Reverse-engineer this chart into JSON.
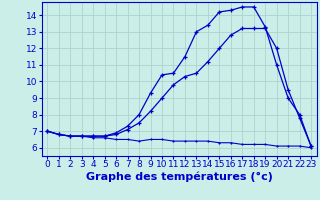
{
  "xlabel": "Graphe des températures (°c)",
  "bg_color": "#cceee8",
  "grid_color": "#aad4cc",
  "line_color": "#0000cc",
  "xlim": [
    -0.5,
    23.5
  ],
  "ylim": [
    5.5,
    14.8
  ],
  "xticks": [
    0,
    1,
    2,
    3,
    4,
    5,
    6,
    7,
    8,
    9,
    10,
    11,
    12,
    13,
    14,
    15,
    16,
    17,
    18,
    19,
    20,
    21,
    22,
    23
  ],
  "yticks": [
    6,
    7,
    8,
    9,
    10,
    11,
    12,
    13,
    14
  ],
  "line1_x": [
    0,
    1,
    2,
    3,
    4,
    5,
    6,
    7,
    8,
    9,
    10,
    11,
    12,
    13,
    14,
    15,
    16,
    17,
    18,
    19,
    20,
    21,
    22,
    23
  ],
  "line1_y": [
    7.0,
    6.8,
    6.7,
    6.7,
    6.6,
    6.6,
    6.5,
    6.5,
    6.4,
    6.5,
    6.5,
    6.4,
    6.4,
    6.4,
    6.4,
    6.3,
    6.3,
    6.2,
    6.2,
    6.2,
    6.1,
    6.1,
    6.1,
    6.0
  ],
  "line2_x": [
    0,
    1,
    2,
    3,
    4,
    5,
    6,
    7,
    8,
    9,
    10,
    11,
    12,
    13,
    14,
    15,
    16,
    17,
    18,
    19,
    20,
    21,
    22,
    23
  ],
  "line2_y": [
    7.0,
    6.8,
    6.7,
    6.7,
    6.7,
    6.7,
    6.8,
    7.1,
    7.5,
    8.2,
    9.0,
    9.8,
    10.3,
    10.5,
    11.2,
    12.0,
    12.8,
    13.2,
    13.2,
    13.2,
    12.0,
    9.5,
    7.8,
    6.1
  ],
  "line3_x": [
    0,
    1,
    2,
    3,
    4,
    5,
    6,
    7,
    8,
    9,
    10,
    11,
    12,
    13,
    14,
    15,
    16,
    17,
    18,
    19,
    20,
    21,
    22,
    23
  ],
  "line3_y": [
    7.0,
    6.8,
    6.7,
    6.7,
    6.7,
    6.7,
    6.9,
    7.3,
    8.0,
    9.3,
    10.4,
    10.5,
    11.5,
    13.0,
    13.4,
    14.2,
    14.3,
    14.5,
    14.5,
    13.3,
    11.0,
    9.0,
    8.0,
    6.1
  ],
  "xlabel_fontsize": 8,
  "tick_fontsize": 6.5
}
